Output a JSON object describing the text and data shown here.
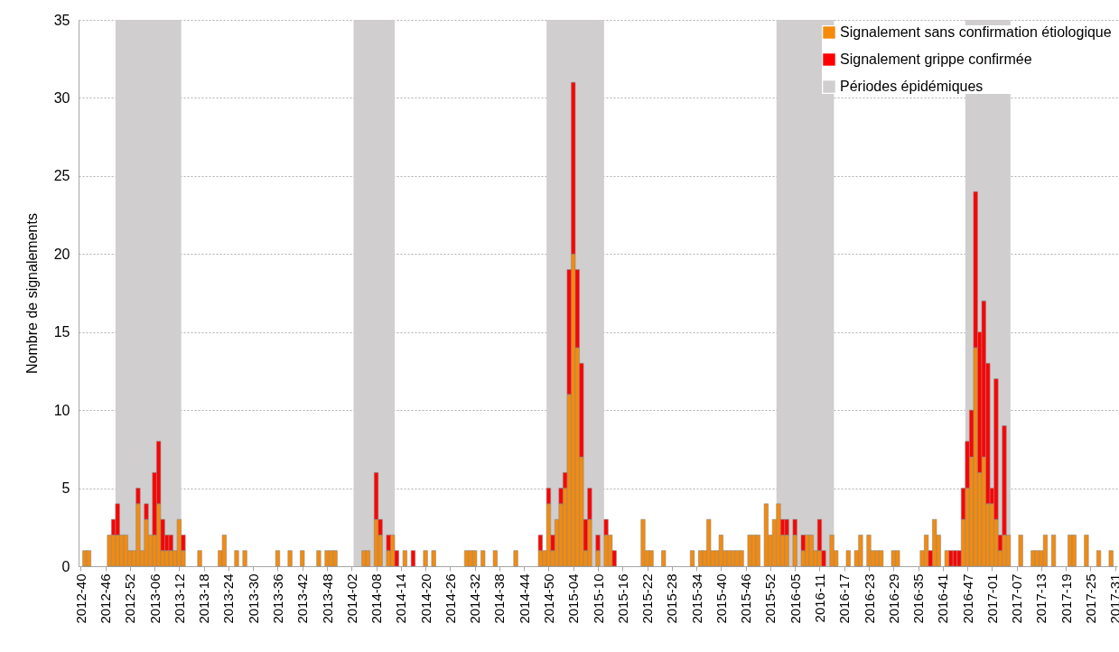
{
  "chart_data": {
    "type": "bar",
    "stacked": true,
    "ylabel": "Nombre de signalements",
    "categories": [
      "2012-40",
      null,
      null,
      null,
      null,
      null,
      "2012-46",
      null,
      null,
      null,
      null,
      null,
      "2012-52",
      null,
      null,
      null,
      null,
      null,
      "2013-06",
      null,
      null,
      null,
      null,
      null,
      "2013-12",
      null,
      null,
      null,
      null,
      null,
      "2013-18",
      null,
      null,
      null,
      null,
      null,
      "2013-24",
      null,
      null,
      null,
      null,
      null,
      "2013-30",
      null,
      null,
      null,
      null,
      null,
      "2013-36",
      null,
      null,
      null,
      null,
      null,
      "2013-42",
      null,
      null,
      null,
      null,
      null,
      "2013-48",
      null,
      null,
      null,
      null,
      null,
      "2014-02",
      null,
      null,
      null,
      null,
      null,
      "2014-08",
      null,
      null,
      null,
      null,
      null,
      "2014-14",
      null,
      null,
      null,
      null,
      null,
      "2014-20",
      null,
      null,
      null,
      null,
      null,
      "2014-26",
      null,
      null,
      null,
      null,
      null,
      "2014-32",
      null,
      null,
      null,
      null,
      null,
      "2014-38",
      null,
      null,
      null,
      null,
      null,
      "2014-44",
      null,
      null,
      null,
      null,
      null,
      "2014-50",
      null,
      null,
      null,
      null,
      null,
      "2015-04",
      null,
      null,
      null,
      null,
      null,
      "2015-10",
      null,
      null,
      null,
      null,
      null,
      "2015-16",
      null,
      null,
      null,
      null,
      null,
      "2015-22",
      null,
      null,
      null,
      null,
      null,
      "2015-28",
      null,
      null,
      null,
      null,
      null,
      "2015-34",
      null,
      null,
      null,
      null,
      null,
      "2015-40",
      null,
      null,
      null,
      null,
      null,
      "2015-46",
      null,
      null,
      null,
      null,
      null,
      "2015-52",
      null,
      null,
      null,
      null,
      null,
      "2016-05",
      null,
      null,
      null,
      null,
      null,
      "2016-11",
      null,
      null,
      null,
      null,
      null,
      "2016-17",
      null,
      null,
      null,
      null,
      null,
      "2016-23",
      null,
      null,
      null,
      null,
      null,
      "2016-29",
      null,
      null,
      null,
      null,
      null,
      "2016-35",
      null,
      null,
      null,
      null,
      null,
      "2016-41",
      null,
      null,
      null,
      null,
      null,
      "2016-47",
      null,
      null,
      null,
      null,
      null,
      "2017-01",
      null,
      null,
      null,
      null,
      null,
      "2017-07",
      null,
      null,
      null,
      null,
      null,
      "2017-13",
      null,
      null,
      null,
      null,
      null,
      "2017-19",
      null,
      null,
      null,
      null,
      null,
      "2017-25",
      null,
      null,
      null,
      null,
      null,
      "2017-31"
    ],
    "series": [
      {
        "name": "Signalement sans confirmation étiologique",
        "color": "#f58a0b",
        "values": [
          null,
          1,
          1,
          null,
          null,
          null,
          null,
          2,
          2,
          2,
          2,
          2,
          1,
          1,
          4,
          1,
          3,
          2,
          2,
          4,
          1,
          1,
          1,
          1,
          3,
          1,
          null,
          null,
          null,
          1,
          null,
          null,
          null,
          null,
          1,
          2,
          null,
          null,
          1,
          null,
          1,
          null,
          null,
          null,
          null,
          null,
          null,
          null,
          1,
          null,
          null,
          1,
          null,
          null,
          1,
          null,
          null,
          null,
          1,
          null,
          1,
          1,
          1,
          null,
          null,
          null,
          null,
          null,
          null,
          1,
          1,
          null,
          3,
          2,
          null,
          1,
          2,
          null,
          null,
          1,
          null,
          null,
          null,
          null,
          1,
          null,
          1,
          null,
          null,
          null,
          null,
          null,
          null,
          null,
          1,
          1,
          1,
          null,
          1,
          null,
          null,
          1,
          null,
          null,
          null,
          null,
          1,
          null,
          null,
          null,
          null,
          null,
          1,
          1,
          4,
          1,
          3,
          4,
          5,
          11,
          20,
          14,
          7,
          1,
          3,
          null,
          1,
          null,
          2,
          2,
          null,
          null,
          null,
          null,
          null,
          null,
          null,
          3,
          1,
          1,
          null,
          null,
          1,
          null,
          null,
          null,
          null,
          null,
          null,
          1,
          null,
          1,
          1,
          3,
          1,
          1,
          2,
          1,
          1,
          1,
          1,
          1,
          null,
          2,
          2,
          2,
          null,
          4,
          2,
          3,
          4,
          2,
          2,
          null,
          2,
          null,
          1,
          2,
          2,
          1,
          1,
          null,
          null,
          2,
          1,
          null,
          null,
          1,
          null,
          1,
          2,
          null,
          2,
          1,
          1,
          1,
          null,
          null,
          1,
          1,
          null,
          null,
          null,
          null,
          null,
          1,
          2,
          null,
          3,
          2,
          null,
          1,
          null,
          null,
          null,
          3,
          5,
          7,
          14,
          6,
          7,
          4,
          4,
          3,
          1,
          2,
          2,
          null,
          null,
          2,
          null,
          null,
          1,
          1,
          1,
          2,
          null,
          2,
          null,
          null,
          null,
          2,
          2,
          null,
          null,
          2,
          null,
          null,
          1,
          null,
          null,
          1,
          null
        ]
      },
      {
        "name": "Signalement grippe confirmée",
        "color": "#ff0000",
        "values": [
          null,
          null,
          null,
          null,
          null,
          null,
          null,
          null,
          1,
          2,
          null,
          null,
          null,
          null,
          1,
          null,
          1,
          null,
          4,
          4,
          2,
          1,
          1,
          null,
          null,
          1,
          null,
          null,
          null,
          null,
          null,
          null,
          null,
          null,
          null,
          null,
          null,
          null,
          null,
          null,
          null,
          null,
          null,
          null,
          null,
          null,
          null,
          null,
          null,
          null,
          null,
          null,
          null,
          null,
          null,
          null,
          null,
          null,
          null,
          null,
          null,
          null,
          null,
          null,
          null,
          null,
          null,
          null,
          null,
          null,
          null,
          null,
          3,
          1,
          null,
          1,
          null,
          1,
          null,
          null,
          null,
          1,
          null,
          null,
          null,
          null,
          null,
          null,
          null,
          null,
          null,
          null,
          null,
          null,
          null,
          null,
          null,
          null,
          null,
          null,
          null,
          null,
          null,
          null,
          null,
          null,
          null,
          null,
          null,
          null,
          null,
          null,
          1,
          null,
          1,
          1,
          null,
          1,
          1,
          8,
          11,
          5,
          6,
          2,
          2,
          null,
          1,
          null,
          1,
          null,
          1,
          null,
          null,
          null,
          null,
          null,
          null,
          null,
          null,
          null,
          null,
          null,
          null,
          null,
          null,
          null,
          null,
          null,
          null,
          null,
          null,
          null,
          null,
          null,
          null,
          null,
          null,
          null,
          null,
          null,
          null,
          null,
          null,
          null,
          null,
          null,
          null,
          null,
          null,
          null,
          null,
          1,
          1,
          null,
          1,
          null,
          1,
          null,
          null,
          null,
          2,
          1,
          null,
          null,
          null,
          null,
          null,
          null,
          null,
          null,
          null,
          null,
          null,
          null,
          null,
          null,
          null,
          null,
          null,
          null,
          null,
          null,
          null,
          null,
          null,
          null,
          null,
          1,
          null,
          null,
          null,
          null,
          1,
          1,
          1,
          2,
          3,
          3,
          10,
          9,
          10,
          9,
          1,
          9,
          1,
          7,
          null,
          null,
          null,
          null,
          null,
          null,
          null,
          null,
          null,
          null,
          null,
          null,
          null,
          null,
          null,
          null,
          null,
          null,
          null,
          null,
          null,
          null,
          null,
          null,
          null,
          null,
          null
        ]
      }
    ],
    "annotations": [
      "Périodes épidémiques"
    ],
    "ylim": [
      0,
      35
    ],
    "yticks": [
      0,
      5,
      10,
      15,
      20,
      25,
      30,
      35
    ],
    "grid": "y",
    "legend": "top right"
  }
}
